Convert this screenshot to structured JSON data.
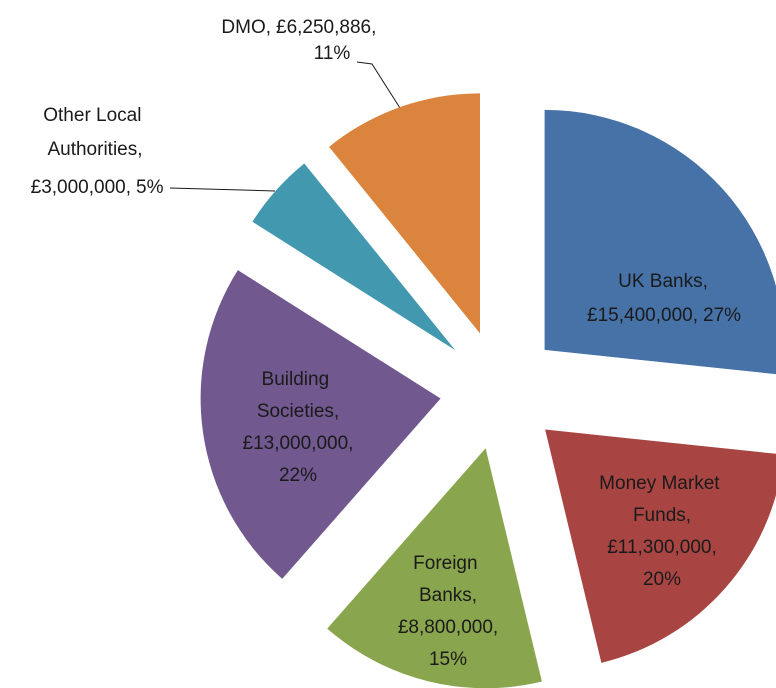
{
  "chart_data": {
    "type": "pie",
    "categories": [
      "UK Banks,",
      "Money Market Funds,",
      "Foreign Banks,",
      "Building Societies,",
      "Other Local Authorities,",
      "DMO,"
    ],
    "values": [
      15400000,
      11300000,
      8800000,
      13000000,
      3000000,
      6250886
    ],
    "value_labels": [
      "£15,400,000,",
      "£11,300,000,",
      "£8,800,000,",
      "£13,000,000,",
      "£3,000,000,",
      "£6,250,886,"
    ],
    "percentages": [
      27,
      20,
      15,
      22,
      5,
      11
    ],
    "percentage_labels": [
      "27%",
      "20%",
      "15%",
      "22%",
      "5%",
      "11%"
    ],
    "colors": [
      "#4672a8",
      "#a84543",
      "#89a54e",
      "#71588f",
      "#4198af",
      "#db843d"
    ],
    "exploded": true
  }
}
